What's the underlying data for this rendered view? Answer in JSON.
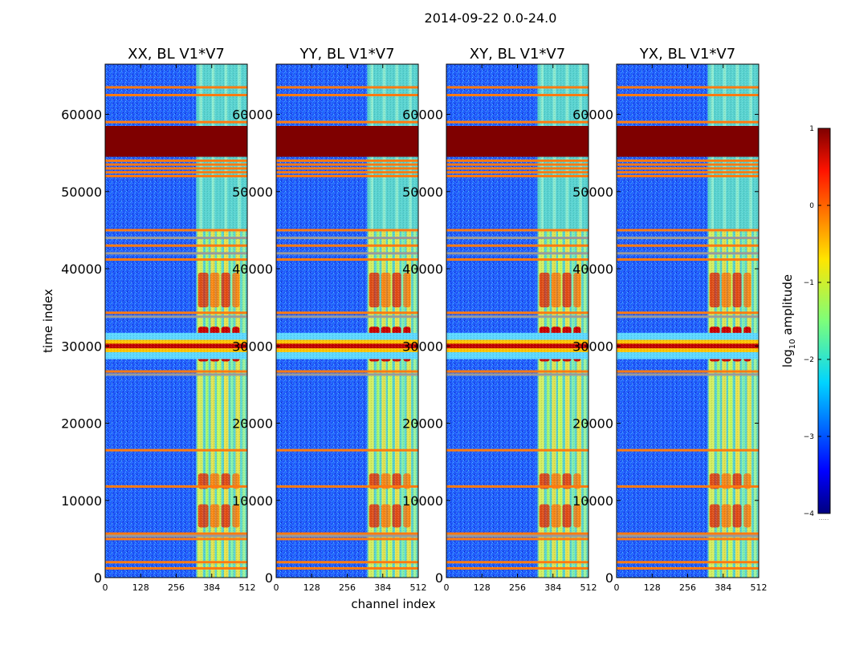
{
  "chart_data": {
    "type": "heatmap",
    "suptitle": "2014-09-22 0.0-24.0",
    "xlabel": "channel index",
    "ylabel": "time index",
    "xlim": [
      0,
      512
    ],
    "ylim": [
      0,
      66500
    ],
    "x_ticks": [
      0,
      128,
      256,
      384,
      512
    ],
    "y_ticks": [
      0,
      10000,
      20000,
      30000,
      40000,
      50000,
      60000
    ],
    "panels": [
      {
        "title": "XX, BL V1*V7"
      },
      {
        "title": "YY, BL V1*V7"
      },
      {
        "title": "XY, BL V1*V7"
      },
      {
        "title": "YX, BL V1*V7"
      }
    ],
    "colorbar": {
      "label": "log10 amplitude",
      "label_base": "log",
      "label_sub": "10",
      "label_rest": " amplitude",
      "range": [
        -4,
        1
      ],
      "ticks": [
        1,
        0,
        -1,
        -2,
        -3,
        -4
      ],
      "tick_labels": [
        "1",
        "0",
        "−1",
        "−2",
        "−3",
        "−4"
      ],
      "colormap": "jet",
      "underflow_marker": "....."
    },
    "features": {
      "saturated_band_time": [
        54500,
        58500
      ],
      "strong_band_time": [
        29200,
        30800
      ],
      "active_channel_range": [
        328,
        512
      ],
      "flagged_rows_time": [
        52000,
        52500,
        53000,
        53500,
        54000,
        59000,
        62500,
        63500,
        34300,
        33800,
        26700,
        26300,
        5700,
        5400,
        5000,
        11800,
        16500,
        1200,
        2000,
        45000,
        44000,
        43000,
        42000,
        41200
      ]
    }
  },
  "colors": {
    "background": "#ffffff",
    "saturated": "#7f0000",
    "flag_orange": "#ff7a10",
    "flag_grey": "#9a9a9a",
    "noise_blue": "#1f5fff"
  }
}
